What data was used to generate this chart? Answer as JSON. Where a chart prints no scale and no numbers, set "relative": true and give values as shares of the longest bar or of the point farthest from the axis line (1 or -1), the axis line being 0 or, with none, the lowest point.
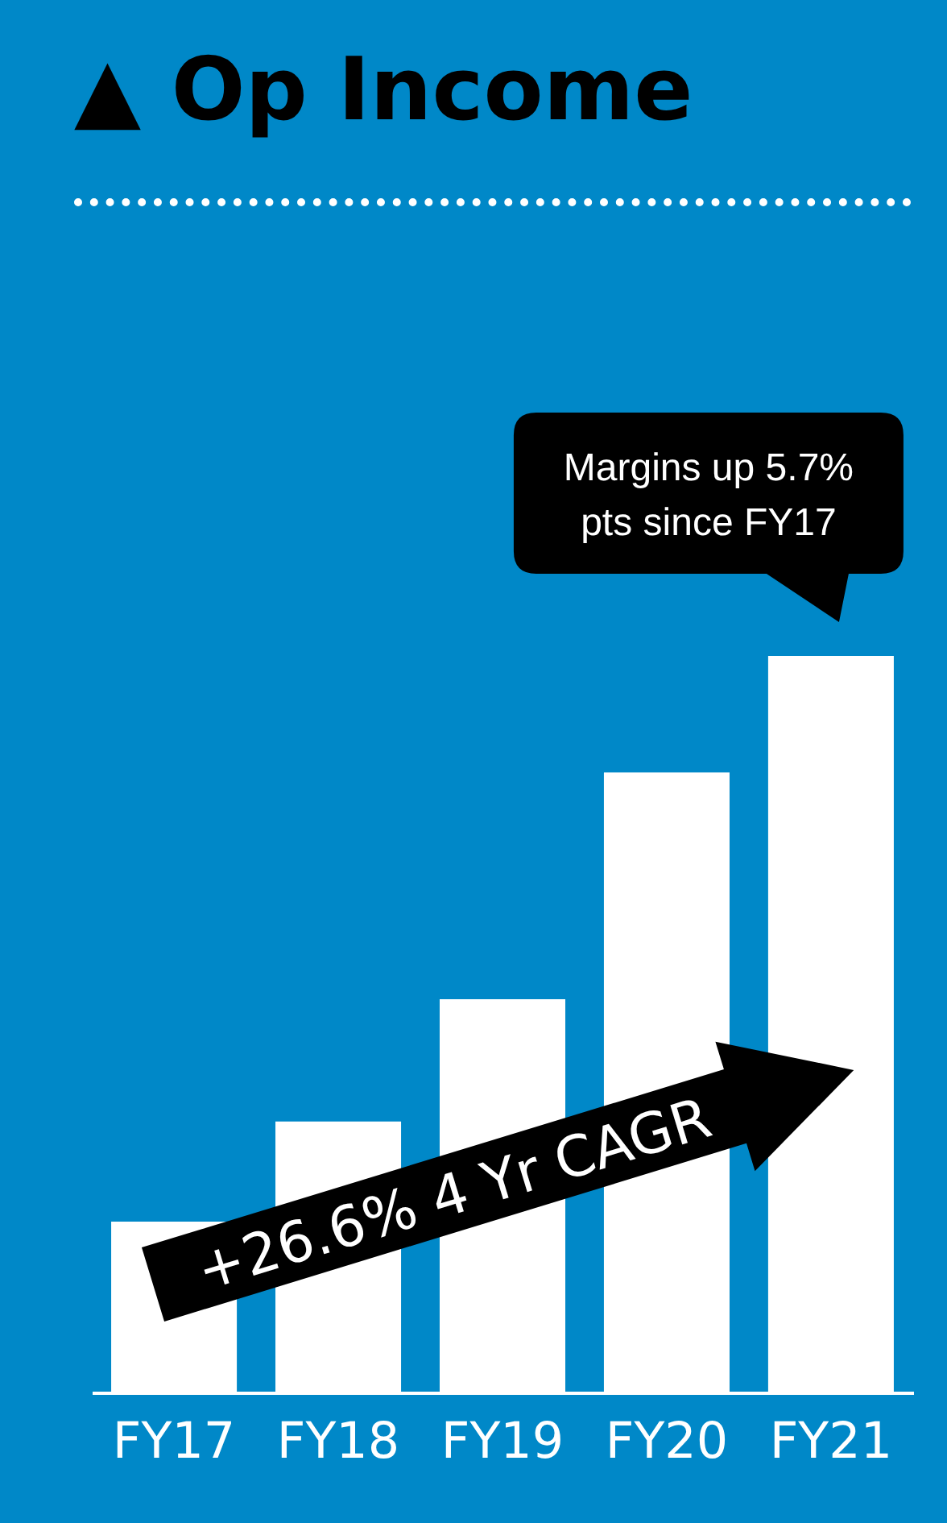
{
  "chart_data": {
    "type": "bar",
    "title": "▲ Op Income",
    "categories": [
      "FY17",
      "FY18",
      "FY19",
      "FY20",
      "FY21"
    ],
    "values": [
      0.232,
      0.368,
      0.534,
      0.842,
      1
    ],
    "color": "#ffffff",
    "relative": true,
    "annotations": [
      {
        "text": "Margins up 5.7% pts since FY17",
        "x": "FY21",
        "y": 1
      },
      "+26.6% 4 Yr CAGR"
    ]
  }
}
